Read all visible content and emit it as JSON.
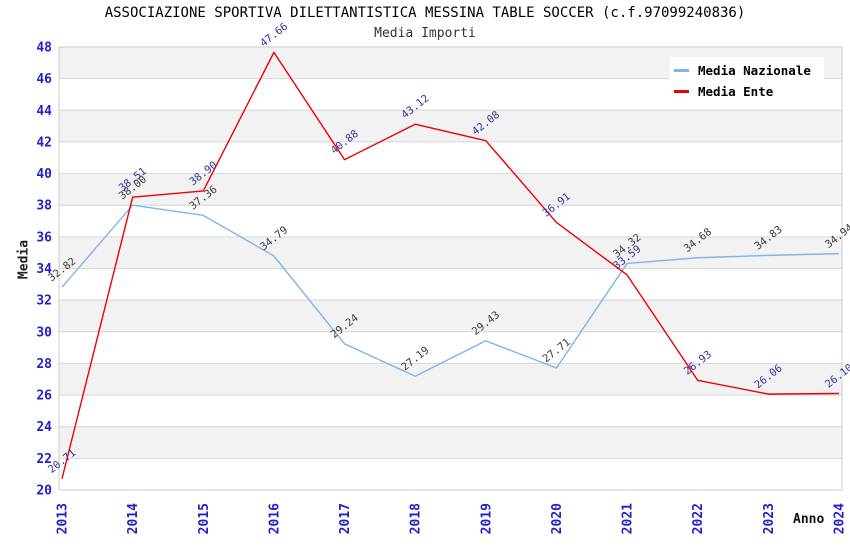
{
  "header": {
    "title": "ASSOCIAZIONE SPORTIVA DILETTANTISTICA MESSINA TABLE SOCCER (c.f.97099240836)",
    "subtitle": "Media Importi"
  },
  "legend": {
    "items": [
      {
        "label": "Media Nazionale",
        "color": "#7fb5e9"
      },
      {
        "label": "Media Ente",
        "color": "#ee0000"
      }
    ]
  },
  "chart_data": {
    "type": "line",
    "title": "ASSOCIAZIONE SPORTIVA DILETTANTISTICA MESSINA TABLE SOCCER (c.f.97099240836)",
    "subtitle": "Media Importi",
    "xlabel": "Anno",
    "ylabel": "Media",
    "ylim": [
      20,
      48
    ],
    "ytick_step": 2,
    "grid": true,
    "band_color": "#f2f2f2",
    "gridline_color": "#d6d6d6",
    "axis_tick_color": "#2121cc",
    "legend_position": "top-right",
    "x": [
      "2013",
      "2014",
      "2015",
      "2016",
      "2017",
      "2018",
      "2019",
      "2020",
      "2021",
      "2022",
      "2023",
      "2024"
    ],
    "series": [
      {
        "name": "Media Nazionale",
        "color": "#7fb5e9",
        "label_color": "#3a3a3a",
        "values": [
          32.82,
          38.0,
          37.36,
          34.79,
          29.24,
          27.19,
          29.43,
          27.71,
          34.32,
          34.68,
          34.83,
          34.94
        ],
        "labels": [
          "32.82",
          "38.00",
          "37.36",
          "34.79",
          "29.24",
          "27.19",
          "29.43",
          "27.71",
          "34.32",
          "34.68",
          "34.83",
          "34.94"
        ]
      },
      {
        "name": "Media Ente",
        "color": "#ee0000",
        "label_color": "#333399",
        "values": [
          20.71,
          38.51,
          38.9,
          47.66,
          40.88,
          43.12,
          42.08,
          36.91,
          33.59,
          26.93,
          26.06,
          26.1
        ],
        "labels": [
          "20.71",
          "38.51",
          "38.90",
          "47.66",
          "40.88",
          "43.12",
          "42.08",
          "36.91",
          "33.59",
          "26.93",
          "26.06",
          "26.10"
        ]
      }
    ]
  }
}
